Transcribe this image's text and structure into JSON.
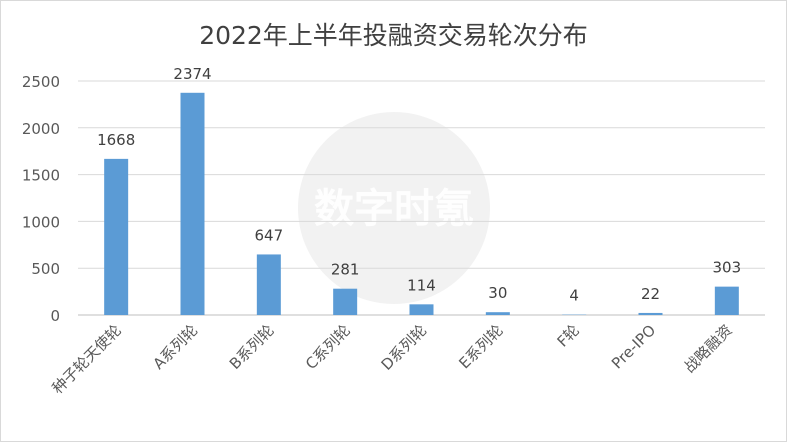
{
  "chart_data": {
    "type": "bar",
    "title": "2022年上半年投融资交易轮次分布",
    "categories": [
      "种子轮天使轮",
      "A系列轮",
      "B系列轮",
      "C系列轮",
      "D系列轮",
      "E系列轮",
      "F轮",
      "Pre-IPO",
      "战略融资"
    ],
    "values": [
      1668,
      2374,
      647,
      281,
      114,
      30,
      4,
      22,
      303
    ],
    "ylim": [
      0,
      2500
    ],
    "yticks": [
      0,
      500,
      1000,
      1500,
      2000,
      2500
    ],
    "grid": true,
    "bar_color": "#5b9bd5",
    "xlabel": "",
    "ylabel": ""
  },
  "watermark": {
    "text": "数字时氪"
  }
}
